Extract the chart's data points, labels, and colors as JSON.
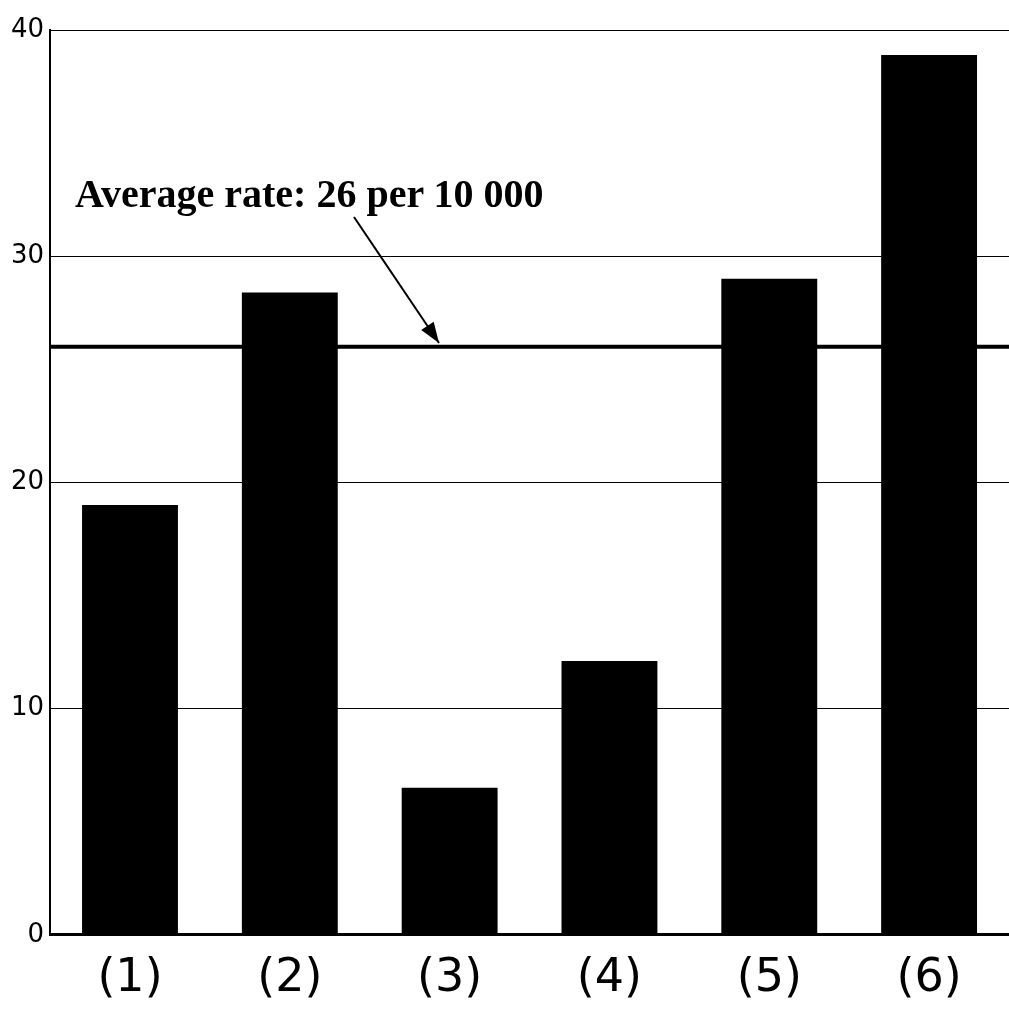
{
  "chart_data": {
    "type": "bar",
    "categories": [
      "(1)",
      "(2)",
      "(3)",
      "(4)",
      "(5)",
      "(6)"
    ],
    "values": [
      19.0,
      28.4,
      6.5,
      12.1,
      29.0,
      38.9
    ],
    "color": "#000000",
    "ylim": [
      0,
      40
    ],
    "yticks": [
      0,
      10,
      20,
      30,
      40
    ],
    "grid": "y",
    "ref_lines": [
      {
        "axis": "y",
        "value": 26,
        "label": "Average rate: 26 per 10 000",
        "color": "#000000"
      }
    ]
  }
}
